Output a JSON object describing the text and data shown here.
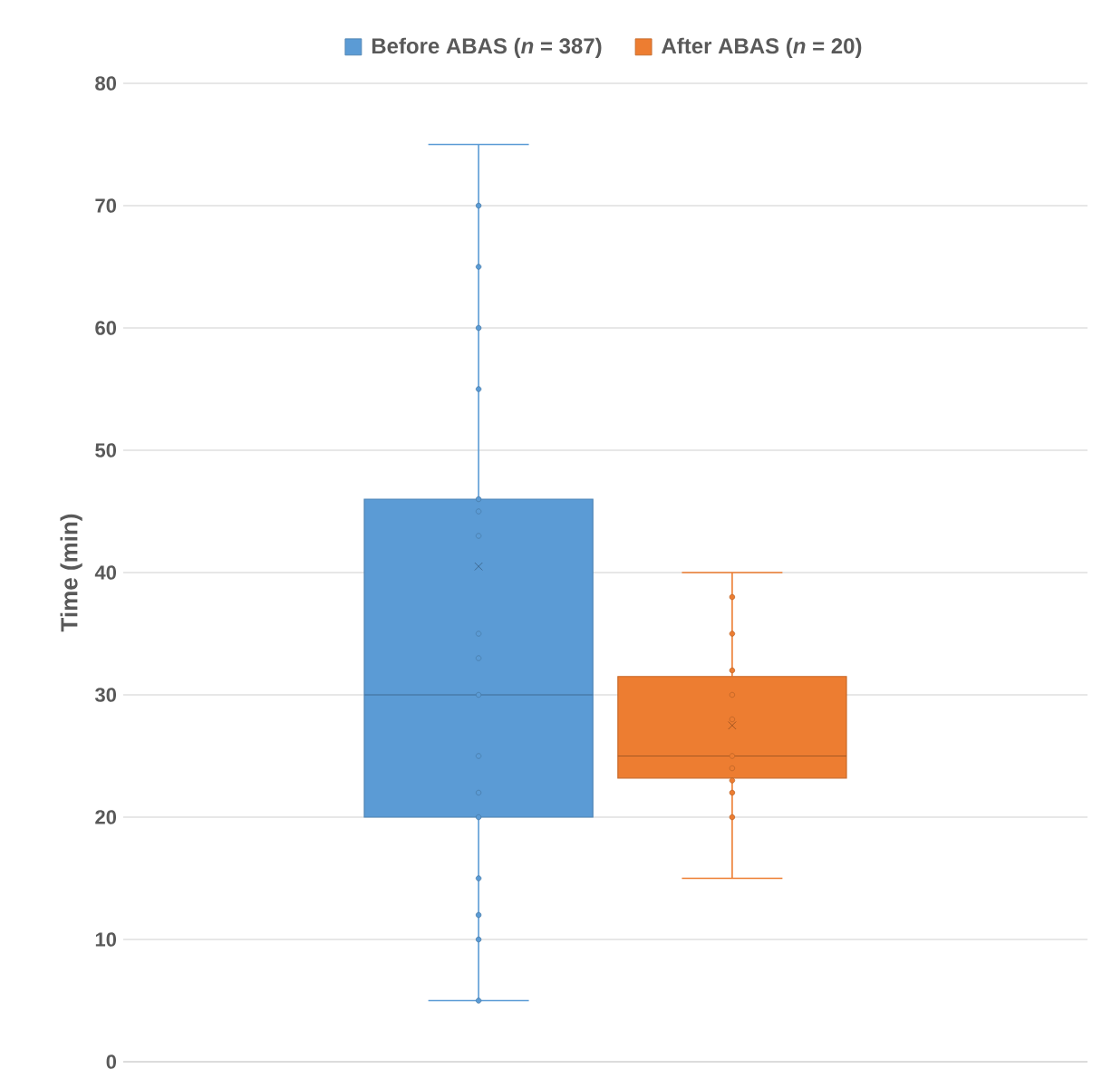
{
  "chart_data": {
    "type": "box",
    "ylabel": "Time (min)",
    "categories": [
      null
    ],
    "ylim": [
      0,
      80
    ],
    "yticks": [
      0,
      10,
      20,
      30,
      40,
      50,
      60,
      70,
      80
    ],
    "grid": "y",
    "legend": "top",
    "series": [
      {
        "name": "Before ABAS (*n* = 387)",
        "color": "#5b9bd5",
        "boxes": [
          {
            "low": 5,
            "q1": 20,
            "median": 30,
            "q3": 46,
            "high": 75,
            "mean": 40.5
          }
        ]
      },
      {
        "name": "After ABAS (*n* = 20)",
        "color": "#ed7d31",
        "boxes": [
          {
            "low": 15,
            "q1": 23.2,
            "median": 25,
            "q3": 31.5,
            "high": 40,
            "mean": 27.5
          }
        ]
      },
      {
        "color": "#5b9bd5",
        "type": "scatter",
        "marker": "circle",
        "x": [
          null,
          null,
          null,
          null,
          null,
          null,
          null,
          null,
          null,
          null,
          null,
          null,
          null,
          null,
          null,
          null,
          null
        ],
        "values": [
          70,
          65,
          60,
          55,
          46,
          45,
          43,
          35,
          33,
          30,
          25,
          22,
          20,
          15,
          12,
          10,
          5
        ]
      },
      {
        "color": "#ed7d31",
        "type": "scatter",
        "marker": "circle",
        "x": [
          null,
          null,
          null,
          null,
          null,
          null,
          null,
          null,
          null,
          null
        ],
        "values": [
          38,
          35,
          32,
          30,
          28,
          25,
          24,
          23,
          22,
          20
        ]
      }
    ]
  }
}
